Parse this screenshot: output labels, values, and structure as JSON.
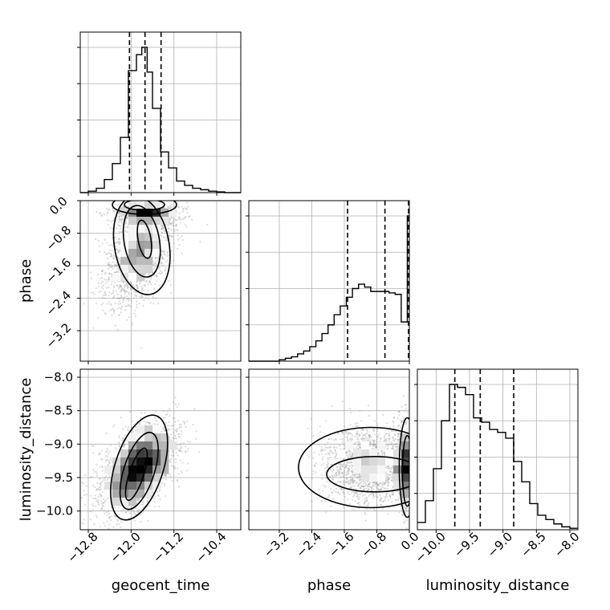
{
  "chart_data": {
    "type": "corner",
    "parameters": [
      "geocent_time",
      "phase",
      "luminosity_distance"
    ],
    "axis_labels": {
      "geocent_time": "geocent_time",
      "phase": "phase",
      "luminosity_distance": "luminosity_distance"
    },
    "ranges": {
      "geocent_time": [
        -12.95,
        -9.95
      ],
      "phase": [
        -3.95,
        0.0
      ],
      "luminosity_distance": [
        -10.28,
        -7.88
      ]
    },
    "ticks": {
      "geocent_time": {
        "values": [
          -12.8,
          -12.0,
          -11.2,
          -10.4
        ],
        "labels": [
          "−12.8",
          "−12.0",
          "−11.2",
          "−10.4"
        ]
      },
      "phase": {
        "values": [
          -3.2,
          -2.4,
          -1.6,
          -0.8,
          0.0
        ],
        "labels": [
          "−3.2",
          "−2.4",
          "−1.6",
          "−0.8",
          "0.0"
        ]
      },
      "luminosity_distance": {
        "y_values": [
          -10.0,
          -9.5,
          -9.0,
          -8.5,
          -8.0
        ],
        "y_labels": [
          "−10.0",
          "−9.5",
          "−9.0",
          "−8.5",
          "−8.0"
        ],
        "x_values": [
          -10.0,
          -9.5,
          -9.0,
          -8.5,
          -8.0
        ],
        "x_labels": [
          "−10.0",
          "−9.5",
          "−9.0",
          "−8.5",
          "−8.0"
        ]
      }
    },
    "quantiles": {
      "geocent_time": [
        -12.03,
        -11.74,
        -11.44
      ],
      "phase": [
        -1.52,
        -0.6,
        0.0
      ],
      "luminosity_distance": [
        -9.72,
        -9.34,
        -8.84
      ]
    },
    "histograms": {
      "geocent_time": {
        "bin_edges": [
          -12.95,
          -12.8,
          -12.65,
          -12.5,
          -12.35,
          -12.2,
          -12.05,
          -11.9,
          -11.8,
          -11.7,
          -11.6,
          -11.45,
          -11.3,
          -11.15,
          -11.0,
          -10.85,
          -10.7,
          -10.55,
          -10.4,
          -10.25,
          -10.1,
          -9.95
        ],
        "counts": [
          0.0,
          0.01,
          0.03,
          0.09,
          0.2,
          0.38,
          0.84,
          0.95,
          1.0,
          0.83,
          0.58,
          0.28,
          0.17,
          0.08,
          0.05,
          0.03,
          0.02,
          0.01,
          0.005,
          0.0,
          0.0
        ]
      },
      "phase": {
        "bin_edges": [
          -3.95,
          -3.8,
          -3.65,
          -3.5,
          -3.35,
          -3.2,
          -3.05,
          -2.9,
          -2.75,
          -2.6,
          -2.45,
          -2.3,
          -2.15,
          -2.0,
          -1.85,
          -1.7,
          -1.55,
          -1.4,
          -1.25,
          -1.1,
          -0.95,
          -0.8,
          -0.65,
          -0.5,
          -0.35,
          -0.2,
          -0.05,
          0.0
        ],
        "counts": [
          0.0,
          0.0,
          0.0,
          0.0,
          0.0,
          0.01,
          0.02,
          0.03,
          0.05,
          0.07,
          0.1,
          0.14,
          0.19,
          0.25,
          0.32,
          0.38,
          0.44,
          0.5,
          0.53,
          0.51,
          0.48,
          0.48,
          0.48,
          0.47,
          0.46,
          0.27,
          1.0
        ]
      },
      "luminosity_distance": {
        "bin_edges": [
          -10.28,
          -10.16,
          -10.04,
          -9.92,
          -9.8,
          -9.68,
          -9.56,
          -9.44,
          -9.32,
          -9.2,
          -9.08,
          -8.96,
          -8.84,
          -8.72,
          -8.6,
          -8.48,
          -8.36,
          -8.24,
          -8.12,
          -8.0,
          -7.88
        ],
        "counts": [
          0.05,
          0.2,
          0.42,
          0.75,
          1.0,
          0.98,
          0.93,
          0.77,
          0.74,
          0.69,
          0.67,
          0.63,
          0.47,
          0.33,
          0.18,
          0.1,
          0.07,
          0.04,
          0.02,
          0.01
        ]
      }
    },
    "scatter_points_per_panel": 2500
  }
}
